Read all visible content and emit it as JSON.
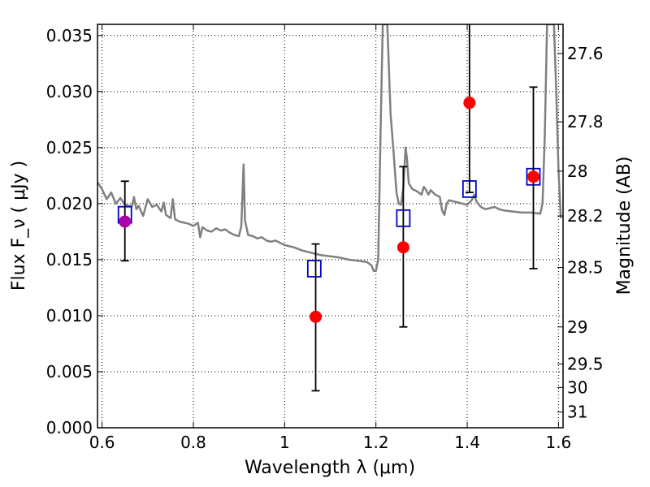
{
  "chart_data": {
    "type": "scatter",
    "xlabel": "Wavelength  λ (μm)",
    "ylabel": "Flux  F_ν  ( μJy )",
    "ylabel_right": "Magnitude (AB)",
    "xlim": [
      0.59,
      1.61
    ],
    "ylim": [
      0.0,
      0.036
    ],
    "grid": true,
    "x_ticks": [
      {
        "value": 0.6,
        "label": "0.6"
      },
      {
        "value": 0.8,
        "label": "0.8"
      },
      {
        "value": 1.0,
        "label": "1"
      },
      {
        "value": 1.2,
        "label": "1.2"
      },
      {
        "value": 1.4,
        "label": "1.4"
      },
      {
        "value": 1.6,
        "label": "1.6"
      }
    ],
    "y_ticks": [
      {
        "value": 0.0,
        "label": "0.000"
      },
      {
        "value": 0.005,
        "label": "0.005"
      },
      {
        "value": 0.01,
        "label": "0.010"
      },
      {
        "value": 0.015,
        "label": "0.015"
      },
      {
        "value": 0.02,
        "label": "0.020"
      },
      {
        "value": 0.025,
        "label": "0.025"
      },
      {
        "value": 0.03,
        "label": "0.030"
      },
      {
        "value": 0.035,
        "label": "0.035"
      }
    ],
    "y_ticks_right": [
      {
        "label": "27.6",
        "flux": 0.0334
      },
      {
        "label": "27.8",
        "flux": 0.0273
      },
      {
        "label": "28",
        "flux": 0.0229
      },
      {
        "label": "28.2",
        "flux": 0.0189
      },
      {
        "label": "28.5",
        "flux": 0.0143
      },
      {
        "label": "29",
        "flux": 0.009
      },
      {
        "label": "29.5",
        "flux": 0.0057
      },
      {
        "label": "30",
        "flux": 0.0036
      },
      {
        "label": "31",
        "flux": 0.0014
      }
    ],
    "model_spectrum": {
      "color": "#808080",
      "points": [
        [
          0.59,
          0.0219
        ],
        [
          0.6,
          0.0213
        ],
        [
          0.61,
          0.0204
        ],
        [
          0.62,
          0.021
        ],
        [
          0.63,
          0.02
        ],
        [
          0.64,
          0.0205
        ],
        [
          0.65,
          0.0199
        ],
        [
          0.66,
          0.0198
        ],
        [
          0.665,
          0.0197
        ],
        [
          0.67,
          0.0206
        ],
        [
          0.675,
          0.0195
        ],
        [
          0.68,
          0.0198
        ],
        [
          0.69,
          0.0189
        ],
        [
          0.7,
          0.0204
        ],
        [
          0.71,
          0.0197
        ],
        [
          0.72,
          0.0199
        ],
        [
          0.73,
          0.0193
        ],
        [
          0.735,
          0.0201
        ],
        [
          0.74,
          0.019
        ],
        [
          0.75,
          0.0187
        ],
        [
          0.755,
          0.0204
        ],
        [
          0.76,
          0.0186
        ],
        [
          0.77,
          0.0184
        ],
        [
          0.78,
          0.0183
        ],
        [
          0.79,
          0.0182
        ],
        [
          0.8,
          0.018
        ],
        [
          0.81,
          0.0183
        ],
        [
          0.815,
          0.017
        ],
        [
          0.82,
          0.0179
        ],
        [
          0.83,
          0.0176
        ],
        [
          0.84,
          0.0175
        ],
        [
          0.85,
          0.0178
        ],
        [
          0.86,
          0.0176
        ],
        [
          0.87,
          0.0177
        ],
        [
          0.88,
          0.0174
        ],
        [
          0.89,
          0.0172
        ],
        [
          0.9,
          0.0171
        ],
        [
          0.905,
          0.018
        ],
        [
          0.91,
          0.0235
        ],
        [
          0.913,
          0.0185
        ],
        [
          0.92,
          0.0172
        ],
        [
          0.93,
          0.0171
        ],
        [
          0.94,
          0.0169
        ],
        [
          0.95,
          0.017
        ],
        [
          0.96,
          0.0167
        ],
        [
          0.97,
          0.0166
        ],
        [
          0.98,
          0.0167
        ],
        [
          1.0,
          0.0163
        ],
        [
          1.02,
          0.0161
        ],
        [
          1.04,
          0.0158
        ],
        [
          1.06,
          0.0156
        ],
        [
          1.08,
          0.0154
        ],
        [
          1.1,
          0.0153
        ],
        [
          1.12,
          0.0152
        ],
        [
          1.14,
          0.015
        ],
        [
          1.16,
          0.0149
        ],
        [
          1.18,
          0.0148
        ],
        [
          1.19,
          0.0145
        ],
        [
          1.195,
          0.014
        ],
        [
          1.2,
          0.014
        ],
        [
          1.205,
          0.015
        ],
        [
          1.21,
          0.026
        ],
        [
          1.215,
          0.036
        ],
        [
          1.225,
          0.036
        ],
        [
          1.232,
          0.028
        ],
        [
          1.238,
          0.025
        ],
        [
          1.245,
          0.021
        ],
        [
          1.25,
          0.02
        ],
        [
          1.255,
          0.0199
        ],
        [
          1.26,
          0.0214
        ],
        [
          1.265,
          0.025
        ],
        [
          1.268,
          0.024
        ],
        [
          1.272,
          0.0218
        ],
        [
          1.28,
          0.0213
        ],
        [
          1.29,
          0.0211
        ],
        [
          1.3,
          0.0208
        ],
        [
          1.305,
          0.0215
        ],
        [
          1.31,
          0.0212
        ],
        [
          1.315,
          0.0208
        ],
        [
          1.32,
          0.0212
        ],
        [
          1.33,
          0.0208
        ],
        [
          1.34,
          0.0206
        ],
        [
          1.345,
          0.0194
        ],
        [
          1.35,
          0.019
        ],
        [
          1.355,
          0.02
        ],
        [
          1.36,
          0.0203
        ],
        [
          1.37,
          0.0202
        ],
        [
          1.38,
          0.0201
        ],
        [
          1.4,
          0.0199
        ],
        [
          1.41,
          0.0203
        ],
        [
          1.415,
          0.0208
        ],
        [
          1.42,
          0.0202
        ],
        [
          1.43,
          0.0197
        ],
        [
          1.44,
          0.0195
        ],
        [
          1.45,
          0.0196
        ],
        [
          1.46,
          0.0197
        ],
        [
          1.47,
          0.0195
        ],
        [
          1.48,
          0.0194
        ],
        [
          1.5,
          0.0193
        ],
        [
          1.52,
          0.0192
        ],
        [
          1.54,
          0.0192
        ],
        [
          1.56,
          0.0191
        ],
        [
          1.565,
          0.02
        ],
        [
          1.57,
          0.026
        ],
        [
          1.575,
          0.036
        ],
        [
          1.59,
          0.036
        ],
        [
          1.595,
          0.03
        ],
        [
          1.6,
          0.023
        ],
        [
          1.605,
          0.0187
        ]
      ]
    },
    "series": [
      {
        "marker": "open-square",
        "color": "#0000cc",
        "points": [
          {
            "x": 0.65,
            "y": 0.019
          },
          {
            "x": 1.065,
            "y": 0.0142
          },
          {
            "x": 1.26,
            "y": 0.0187
          },
          {
            "x": 1.405,
            "y": 0.0213
          },
          {
            "x": 1.545,
            "y": 0.0224
          }
        ]
      },
      {
        "marker": "filled-circle",
        "color": "#ff0000",
        "points": [
          {
            "x": 0.65,
            "y": 0.0184,
            "yerr_low": 0.0149,
            "yerr_high": 0.022,
            "color": "#aa00aa"
          },
          {
            "x": 1.068,
            "y": 0.0099,
            "yerr_low": 0.0033,
            "yerr_high": 0.0164
          },
          {
            "x": 1.26,
            "y": 0.0161,
            "yerr_low": 0.009,
            "yerr_high": 0.0233
          },
          {
            "x": 1.405,
            "y": 0.029,
            "yerr_low": 0.021,
            "yerr_high": 0.037
          },
          {
            "x": 1.545,
            "y": 0.0224,
            "yerr_low": 0.0142,
            "yerr_high": 0.0304
          }
        ]
      }
    ]
  }
}
